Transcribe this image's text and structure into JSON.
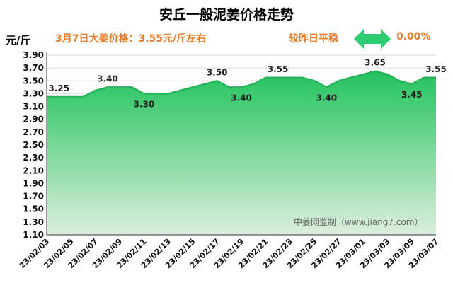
{
  "header": {
    "title": "安丘一般泥姜价格走势",
    "unit": "元/斤",
    "price_note": "3月7日大姜价格：3.55元/斤左右",
    "compare_label": "较昨日平稳",
    "compare_pct": "0.00%"
  },
  "watermark": "中姜网监制（www.jiang7.com）",
  "colors": {
    "fill_top": "#2ecc71",
    "fill_bottom": "#d6f0d6",
    "line": "#27b35a",
    "accent": "#e87d2b",
    "arrow": "#2ecc71"
  },
  "chart_data": {
    "type": "area",
    "title": "安丘一般泥姜价格走势",
    "ylabel": "元/斤",
    "ylim": [
      1.1,
      3.9
    ],
    "yticks": [
      "3.90",
      "3.70",
      "3.50",
      "3.30",
      "3.10",
      "2.90",
      "2.70",
      "2.50",
      "2.30",
      "2.10",
      "1.90",
      "1.70",
      "1.50",
      "1.30",
      "1.10"
    ],
    "ytick_values": [
      3.9,
      3.7,
      3.5,
      3.3,
      3.1,
      2.9,
      2.7,
      2.5,
      2.3,
      2.1,
      1.9,
      1.7,
      1.5,
      1.3,
      1.1
    ],
    "xtick_labels": [
      "23/02/03",
      "23/02/05",
      "23/02/07",
      "23/02/09",
      "23/02/11",
      "23/02/13",
      "23/02/15",
      "23/02/17",
      "23/02/19",
      "23/02/21",
      "23/02/23",
      "23/02/25",
      "23/02/27",
      "23/03/01",
      "23/03/03",
      "23/03/05",
      "23/03/07"
    ],
    "x": [
      "23/02/03",
      "23/02/04",
      "23/02/05",
      "23/02/06",
      "23/02/07",
      "23/02/08",
      "23/02/09",
      "23/02/10",
      "23/02/11",
      "23/02/12",
      "23/02/13",
      "23/02/14",
      "23/02/15",
      "23/02/16",
      "23/02/17",
      "23/02/18",
      "23/02/19",
      "23/02/20",
      "23/02/21",
      "23/02/22",
      "23/02/23",
      "23/02/24",
      "23/02/25",
      "23/02/26",
      "23/02/27",
      "23/02/28",
      "23/03/01",
      "23/03/02",
      "23/03/03",
      "23/03/04",
      "23/03/05",
      "23/03/06",
      "23/03/07"
    ],
    "values": [
      3.25,
      3.25,
      3.25,
      3.25,
      3.35,
      3.4,
      3.4,
      3.4,
      3.3,
      3.3,
      3.3,
      3.35,
      3.4,
      3.45,
      3.5,
      3.4,
      3.4,
      3.45,
      3.55,
      3.55,
      3.55,
      3.55,
      3.5,
      3.4,
      3.5,
      3.55,
      3.6,
      3.65,
      3.6,
      3.5,
      3.45,
      3.55,
      3.55
    ],
    "data_labels": [
      {
        "x": "23/02/04",
        "value": "3.25",
        "pos": "above"
      },
      {
        "x": "23/02/08",
        "value": "3.40",
        "pos": "above"
      },
      {
        "x": "23/02/11",
        "value": "3.30",
        "pos": "below"
      },
      {
        "x": "23/02/17",
        "value": "3.50",
        "pos": "above"
      },
      {
        "x": "23/02/19",
        "value": "3.40",
        "pos": "below"
      },
      {
        "x": "23/02/22",
        "value": "3.55",
        "pos": "above"
      },
      {
        "x": "23/02/26",
        "value": "3.40",
        "pos": "below"
      },
      {
        "x": "23/03/02",
        "value": "3.65",
        "pos": "above"
      },
      {
        "x": "23/03/05",
        "value": "3.45",
        "pos": "below"
      },
      {
        "x": "23/03/07",
        "value": "3.55",
        "pos": "above"
      }
    ],
    "grid": true
  }
}
